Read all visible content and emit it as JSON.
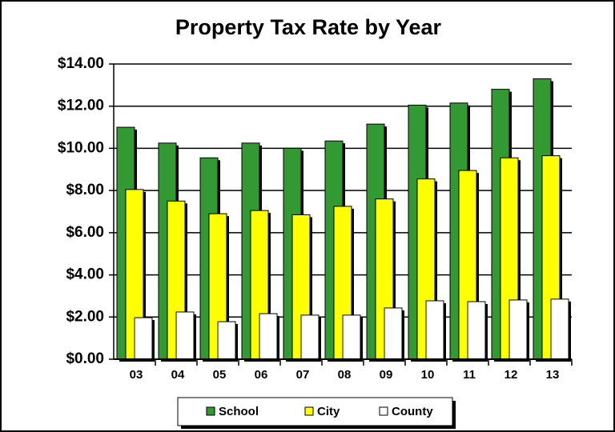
{
  "chart_data": {
    "type": "bar",
    "title": "Property Tax Rate by Year",
    "categories": [
      "03",
      "04",
      "05",
      "06",
      "07",
      "08",
      "09",
      "10",
      "11",
      "12",
      "13"
    ],
    "series": [
      {
        "name": "School",
        "color": "#339933",
        "values": [
          11.0,
          10.25,
          9.55,
          10.25,
          10.0,
          10.35,
          11.15,
          12.05,
          12.15,
          12.8,
          13.3
        ]
      },
      {
        "name": "City",
        "color": "#ffff00",
        "values": [
          8.05,
          7.5,
          6.9,
          7.05,
          6.85,
          7.25,
          7.6,
          8.55,
          8.95,
          9.55,
          9.65
        ]
      },
      {
        "name": "County",
        "color": "#ffffff",
        "values": [
          1.97,
          2.24,
          1.78,
          2.16,
          2.09,
          2.09,
          2.43,
          2.77,
          2.73,
          2.81,
          2.85
        ]
      }
    ],
    "ylim": [
      0,
      14
    ],
    "yticks": [
      {
        "value": 0,
        "label": "$0.00"
      },
      {
        "value": 2,
        "label": "$2.00"
      },
      {
        "value": 4,
        "label": "$4.00"
      },
      {
        "value": 6,
        "label": "$6.00"
      },
      {
        "value": 8,
        "label": "$8.00"
      },
      {
        "value": 10,
        "label": "$10.00"
      },
      {
        "value": 12,
        "label": "$12.00"
      },
      {
        "value": 14,
        "label": "$14.00"
      }
    ],
    "grid": true,
    "legend": "bottom"
  }
}
